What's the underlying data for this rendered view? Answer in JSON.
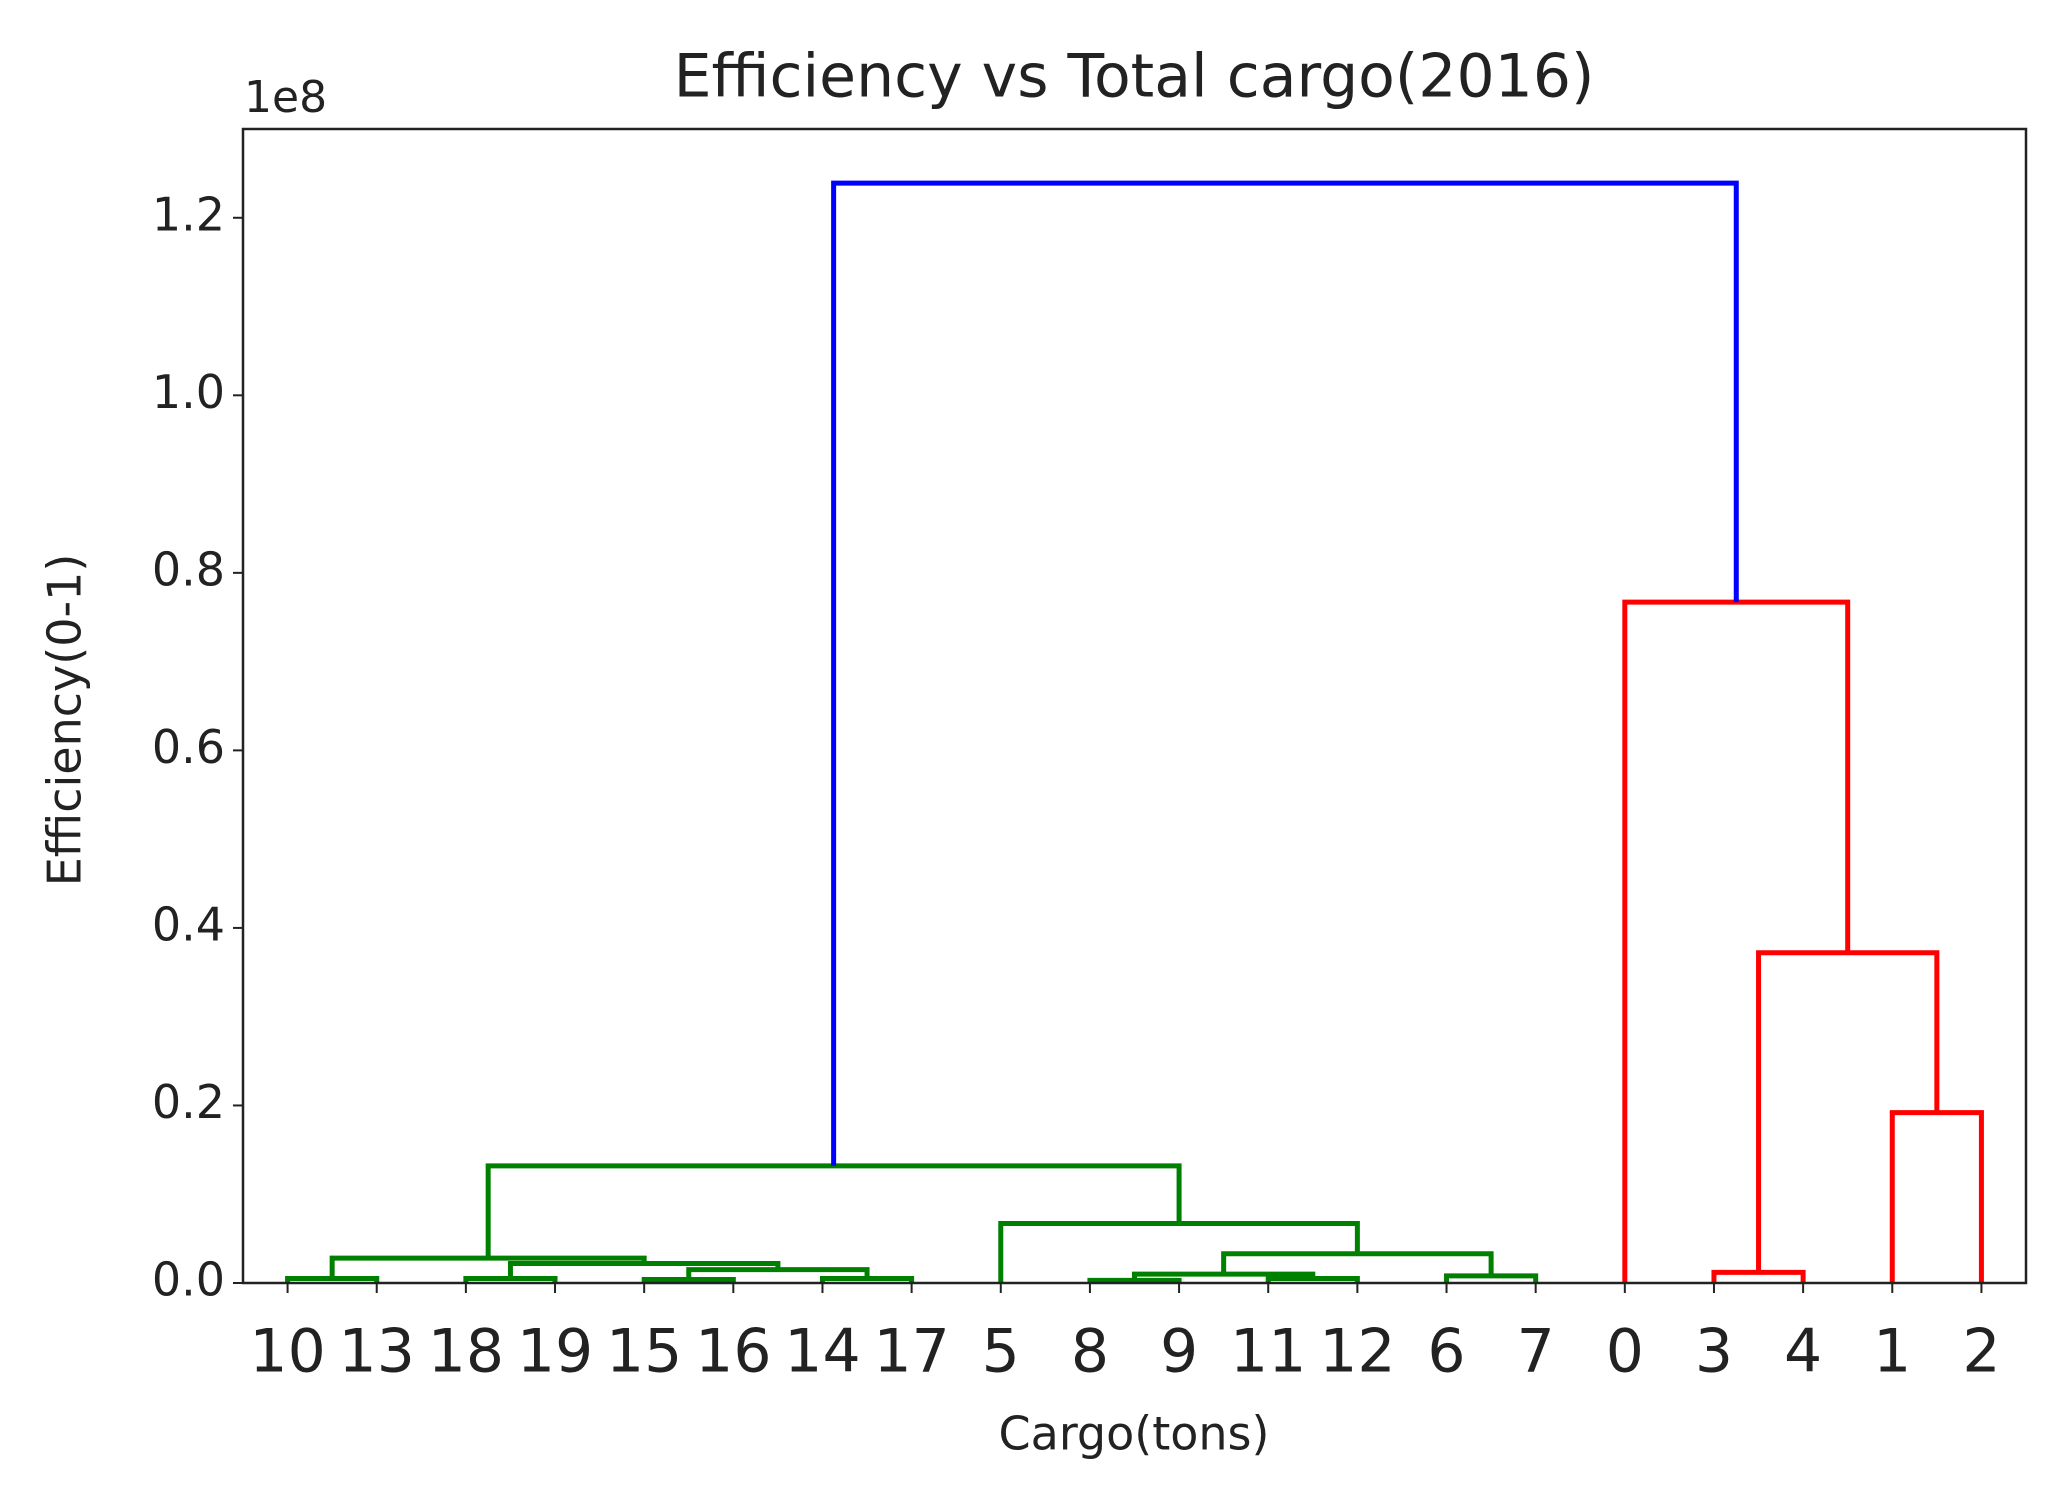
{
  "chart_data": {
    "type": "dendrogram",
    "title": "Efficiency vs Total cargo(2016)",
    "x_label": "Cargo(tons)",
    "y_label": "Efficiency(0-1)",
    "y_offset_label": "1e8",
    "categories": [
      "10",
      "13",
      "18",
      "19",
      "15",
      "16",
      "14",
      "17",
      "5",
      "8",
      "9",
      "11",
      "12",
      "6",
      "7",
      "0",
      "3",
      "4",
      "1",
      "2"
    ],
    "merges": [
      {
        "children": [
          0,
          1
        ],
        "height": 0.005,
        "color": "#008000"
      },
      {
        "children": [
          2,
          3
        ],
        "height": 0.005,
        "color": "#008000"
      },
      {
        "children": [
          4,
          5
        ],
        "height": 0.004,
        "color": "#008000"
      },
      {
        "children": [
          6,
          7
        ],
        "height": 0.005,
        "color": "#008000"
      },
      {
        "children": [
          22,
          23
        ],
        "height": 0.015,
        "color": "#008000"
      },
      {
        "children": [
          21,
          24
        ],
        "height": 0.022,
        "color": "#008000"
      },
      {
        "children": [
          20,
          25
        ],
        "height": 0.028,
        "color": "#008000"
      },
      {
        "children": [
          9,
          10
        ],
        "height": 0.003,
        "color": "#008000"
      },
      {
        "children": [
          11,
          12
        ],
        "height": 0.005,
        "color": "#008000"
      },
      {
        "children": [
          27,
          28
        ],
        "height": 0.01,
        "color": "#008000"
      },
      {
        "children": [
          13,
          14
        ],
        "height": 0.008,
        "color": "#008000"
      },
      {
        "children": [
          29,
          30
        ],
        "height": 0.033,
        "color": "#008000"
      },
      {
        "children": [
          8,
          31
        ],
        "height": 0.067,
        "color": "#008000"
      },
      {
        "children": [
          26,
          32
        ],
        "height": 0.132,
        "color": "#008000"
      },
      {
        "children": [
          16,
          17
        ],
        "height": 0.012,
        "color": "#ff0000"
      },
      {
        "children": [
          18,
          19
        ],
        "height": 0.192,
        "color": "#ff0000"
      },
      {
        "children": [
          34,
          35
        ],
        "height": 0.372,
        "color": "#ff0000"
      },
      {
        "children": [
          15,
          36
        ],
        "height": 0.767,
        "color": "#ff0000"
      },
      {
        "children": [
          33,
          37
        ],
        "height": 1.239,
        "color": "#0000ff"
      }
    ],
    "ylim": [
      0,
      1.3
    ],
    "yticks": [
      {
        "value": 0,
        "label": "0.0"
      },
      0.2,
      0.4,
      0.6,
      0.8,
      {
        "value": 1,
        "label": "1.0"
      },
      1.2
    ]
  }
}
